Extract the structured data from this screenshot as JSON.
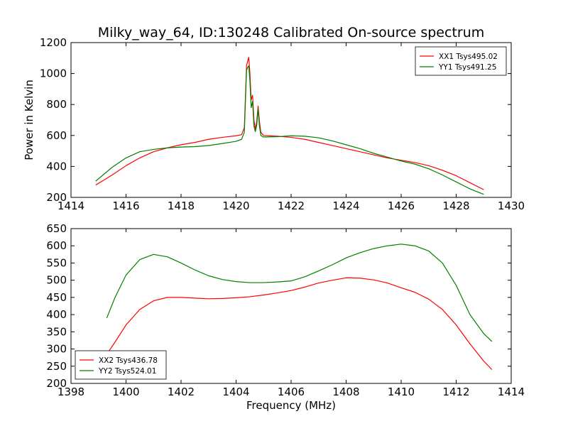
{
  "chart_data": [
    {
      "type": "line",
      "title": "Milky_way_64, ID:130248 Calibrated On-source spectrum",
      "xlabel": "",
      "ylabel": "Power in Kelvin",
      "xlim": [
        1414,
        1430
      ],
      "ylim": [
        200,
        1200
      ],
      "xticks": [
        1414,
        1416,
        1418,
        1420,
        1422,
        1424,
        1426,
        1428,
        1430
      ],
      "yticks": [
        200,
        400,
        600,
        800,
        1000,
        1200
      ],
      "legend_position": "top-right",
      "series": [
        {
          "name": "XX1 Tsys495.02",
          "color": "#ff0000",
          "x": [
            1414.9,
            1415.5,
            1416.0,
            1416.5,
            1417.0,
            1417.5,
            1418.0,
            1418.5,
            1419.0,
            1419.5,
            1420.0,
            1420.2,
            1420.3,
            1420.38,
            1420.42,
            1420.46,
            1420.5,
            1420.55,
            1420.6,
            1420.65,
            1420.7,
            1420.75,
            1420.8,
            1420.85,
            1420.9,
            1421.0,
            1421.5,
            1422.0,
            1422.5,
            1423.0,
            1423.5,
            1424.0,
            1424.5,
            1425.0,
            1425.5,
            1426.0,
            1426.5,
            1427.0,
            1427.5,
            1428.0,
            1428.5,
            1429.0
          ],
          "y": [
            280,
            345,
            405,
            455,
            495,
            520,
            540,
            555,
            575,
            588,
            598,
            605,
            650,
            1050,
            1080,
            1105,
            1010,
            830,
            860,
            700,
            640,
            690,
            790,
            690,
            620,
            600,
            595,
            588,
            575,
            555,
            535,
            515,
            495,
            475,
            455,
            440,
            425,
            405,
            375,
            340,
            295,
            250
          ]
        },
        {
          "name": "YY1 Tsys491.25",
          "color": "#008000",
          "x": [
            1414.9,
            1415.5,
            1416.0,
            1416.5,
            1417.0,
            1417.5,
            1418.0,
            1418.5,
            1419.0,
            1419.5,
            1420.0,
            1420.2,
            1420.3,
            1420.38,
            1420.42,
            1420.46,
            1420.5,
            1420.55,
            1420.6,
            1420.65,
            1420.7,
            1420.75,
            1420.8,
            1420.85,
            1420.9,
            1421.0,
            1421.5,
            1422.0,
            1422.5,
            1423.0,
            1423.5,
            1424.0,
            1424.5,
            1425.0,
            1425.5,
            1426.0,
            1426.5,
            1427.0,
            1427.5,
            1428.0,
            1428.5,
            1429.0
          ],
          "y": [
            305,
            395,
            455,
            495,
            510,
            520,
            525,
            528,
            535,
            548,
            562,
            575,
            620,
            1020,
            1040,
            1050,
            960,
            780,
            820,
            660,
            625,
            665,
            770,
            660,
            600,
            590,
            592,
            598,
            595,
            585,
            565,
            540,
            515,
            485,
            460,
            435,
            415,
            385,
            345,
            300,
            255,
            220
          ]
        }
      ]
    },
    {
      "type": "line",
      "title": "",
      "xlabel": "Frequency (MHz)",
      "ylabel": "",
      "xlim": [
        1398,
        1414
      ],
      "ylim": [
        200,
        650
      ],
      "xticks": [
        1398,
        1400,
        1402,
        1404,
        1406,
        1408,
        1410,
        1412,
        1414
      ],
      "yticks": [
        200,
        250,
        300,
        350,
        400,
        450,
        500,
        550,
        600,
        650
      ],
      "legend_position": "bottom-left",
      "series": [
        {
          "name": "XX2 Tsys436.78",
          "color": "#ff0000",
          "x": [
            1399.3,
            1399.6,
            1400.0,
            1400.5,
            1401.0,
            1401.5,
            1402.0,
            1402.5,
            1403.0,
            1403.5,
            1404.0,
            1404.5,
            1405.0,
            1405.5,
            1406.0,
            1406.5,
            1407.0,
            1407.5,
            1408.0,
            1408.5,
            1409.0,
            1409.5,
            1410.0,
            1410.5,
            1411.0,
            1411.5,
            1412.0,
            1412.5,
            1413.0,
            1413.3
          ],
          "y": [
            285,
            320,
            370,
            415,
            440,
            450,
            450,
            448,
            446,
            447,
            449,
            452,
            457,
            463,
            470,
            480,
            492,
            500,
            507,
            506,
            501,
            492,
            478,
            465,
            445,
            415,
            370,
            315,
            265,
            240
          ]
        },
        {
          "name": "YY2 Tsys524.01",
          "color": "#008000",
          "x": [
            1399.3,
            1399.6,
            1400.0,
            1400.5,
            1401.0,
            1401.5,
            1402.0,
            1402.5,
            1403.0,
            1403.5,
            1404.0,
            1404.5,
            1405.0,
            1405.5,
            1406.0,
            1406.5,
            1407.0,
            1407.5,
            1408.0,
            1408.5,
            1409.0,
            1409.5,
            1410.0,
            1410.5,
            1411.0,
            1411.5,
            1412.0,
            1412.5,
            1413.0,
            1413.3
          ],
          "y": [
            390,
            450,
            515,
            560,
            575,
            568,
            550,
            530,
            513,
            502,
            496,
            493,
            493,
            495,
            498,
            510,
            527,
            545,
            565,
            580,
            592,
            600,
            605,
            600,
            585,
            550,
            485,
            400,
            345,
            322
          ]
        }
      ]
    }
  ]
}
